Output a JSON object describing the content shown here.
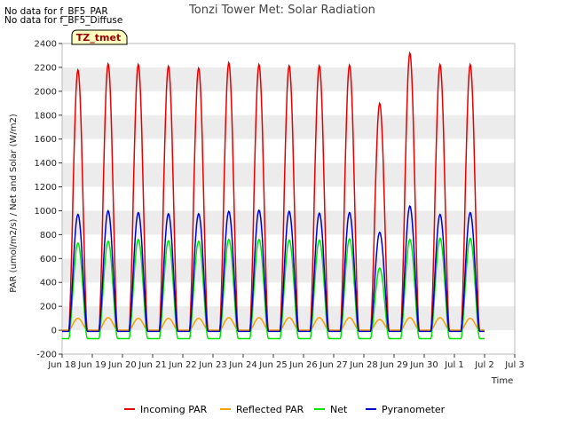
{
  "notes": [
    "No data for f_BF5_PAR",
    "No data for f_BF5_Diffuse"
  ],
  "site_badge": "TZ_tmet",
  "colors": {
    "Incoming PAR": "#e60000",
    "Reflected PAR": "#f5a000",
    "Net": "#00e600",
    "Pyranometer": "#0000cc",
    "band": "#ececec",
    "badge_bg": "#ffffc0",
    "badge_text": "#990000"
  },
  "chart_data": {
    "type": "line",
    "title": "Tonzi Tower Met: Solar Radiation",
    "xlabel": "Time",
    "ylabel": "PAR (umol/m2/s) / Net and Solar (W/m2)",
    "ylim": [
      -200,
      2400
    ],
    "xlim": [
      18,
      33
    ],
    "yticks": [
      -200,
      0,
      200,
      400,
      600,
      800,
      1000,
      1200,
      1400,
      1600,
      1800,
      2000,
      2200,
      2400
    ],
    "xtick_labels": [
      "Jun 18",
      "Jun 19",
      "Jun 20",
      "Jun 21",
      "Jun 22",
      "Jun 23",
      "Jun 24",
      "Jun 25",
      "Jun 26",
      "Jun 27",
      "Jun 28",
      "Jun 29",
      "Jun 30",
      "Jul 1",
      "Jul 2",
      "Jul 3"
    ],
    "grid": "horizontal bands",
    "legend": "bottom",
    "daily_peaks": {
      "days": [
        "Jun 18",
        "Jun 19",
        "Jun 20",
        "Jun 21",
        "Jun 22",
        "Jun 23",
        "Jun 24",
        "Jun 25",
        "Jun 26",
        "Jun 27",
        "Jun 28",
        "Jun 29",
        "Jun 30",
        "Jul 1",
        "Jul 2"
      ],
      "series": [
        {
          "name": "Incoming PAR",
          "values": [
            2180,
            2230,
            2225,
            2210,
            2195,
            2240,
            2225,
            2215,
            2215,
            2220,
            1900,
            2320,
            2225,
            2225,
            null
          ],
          "night": 0
        },
        {
          "name": "Reflected PAR",
          "values": [
            100,
            105,
            100,
            100,
            100,
            105,
            105,
            105,
            105,
            105,
            90,
            105,
            105,
            100,
            null
          ],
          "night": 0
        },
        {
          "name": "Net",
          "values": [
            730,
            745,
            760,
            750,
            745,
            760,
            760,
            755,
            755,
            765,
            520,
            760,
            770,
            770,
            null
          ],
          "night": -70
        },
        {
          "name": "Pyranometer",
          "values": [
            970,
            1000,
            985,
            975,
            975,
            995,
            1005,
            995,
            980,
            985,
            820,
            1040,
            970,
            985,
            null
          ],
          "night": -10
        }
      ]
    }
  }
}
